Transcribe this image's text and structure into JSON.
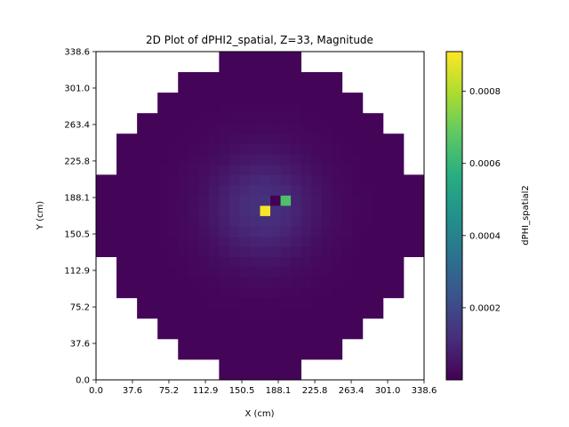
{
  "chart_data": {
    "type": "heatmap",
    "title": "2D Plot of dPHI2_spatial, Z=33, Magnitude",
    "xlabel": "X (cm)",
    "ylabel": "Y (cm)",
    "xlim": [
      0.0,
      338.6
    ],
    "ylim": [
      0.0,
      338.6
    ],
    "xticks": [
      "0.0",
      "37.6",
      "75.2",
      "112.9",
      "150.5",
      "188.1",
      "225.8",
      "263.4",
      "301.0",
      "338.6"
    ],
    "yticks": [
      "0.0",
      "37.6",
      "75.2",
      "112.9",
      "150.5",
      "188.1",
      "225.8",
      "263.4",
      "301.0",
      "338.6"
    ],
    "grid": {
      "nx": 32,
      "ny": 32,
      "cell_size_cm": 10.58
    },
    "row_extents": [
      [
        12,
        19
      ],
      [
        12,
        19
      ],
      [
        8,
        23
      ],
      [
        8,
        23
      ],
      [
        6,
        25
      ],
      [
        6,
        25
      ],
      [
        4,
        27
      ],
      [
        4,
        27
      ],
      [
        2,
        29
      ],
      [
        2,
        29
      ],
      [
        2,
        29
      ],
      [
        2,
        29
      ],
      [
        0,
        31
      ],
      [
        0,
        31
      ],
      [
        0,
        31
      ],
      [
        0,
        31
      ],
      [
        0,
        31
      ],
      [
        0,
        31
      ],
      [
        0,
        31
      ],
      [
        0,
        31
      ],
      [
        2,
        29
      ],
      [
        2,
        29
      ],
      [
        2,
        29
      ],
      [
        2,
        29
      ],
      [
        4,
        27
      ],
      [
        4,
        27
      ],
      [
        6,
        25
      ],
      [
        6,
        25
      ],
      [
        8,
        23
      ],
      [
        8,
        23
      ],
      [
        12,
        19
      ],
      [
        12,
        19
      ]
    ],
    "field": {
      "background": 1e-05,
      "peak_center_cm": [
        172.0,
        178.0
      ],
      "peak_amplitude": 0.00012,
      "peak_width_cm": 38.0
    },
    "hot_cells": [
      {
        "x_cm": 174.6,
        "y_cm": 174.6,
        "value": 0.0009
      },
      {
        "x_cm": 195.8,
        "y_cm": 185.2,
        "value": 0.00065
      }
    ],
    "dark_cells": [
      {
        "x_cm": 185.2,
        "y_cm": 185.2,
        "value": 0.0
      }
    ],
    "colorbar": {
      "label": "dPHI_spatial2",
      "min": 0.0,
      "max": 0.00091,
      "ticks": [
        0.0002,
        0.0004,
        0.0006,
        0.0008
      ],
      "tick_labels": [
        "0.0002",
        "0.0004",
        "0.0006",
        "0.0008"
      ],
      "colormap": "viridis"
    }
  }
}
